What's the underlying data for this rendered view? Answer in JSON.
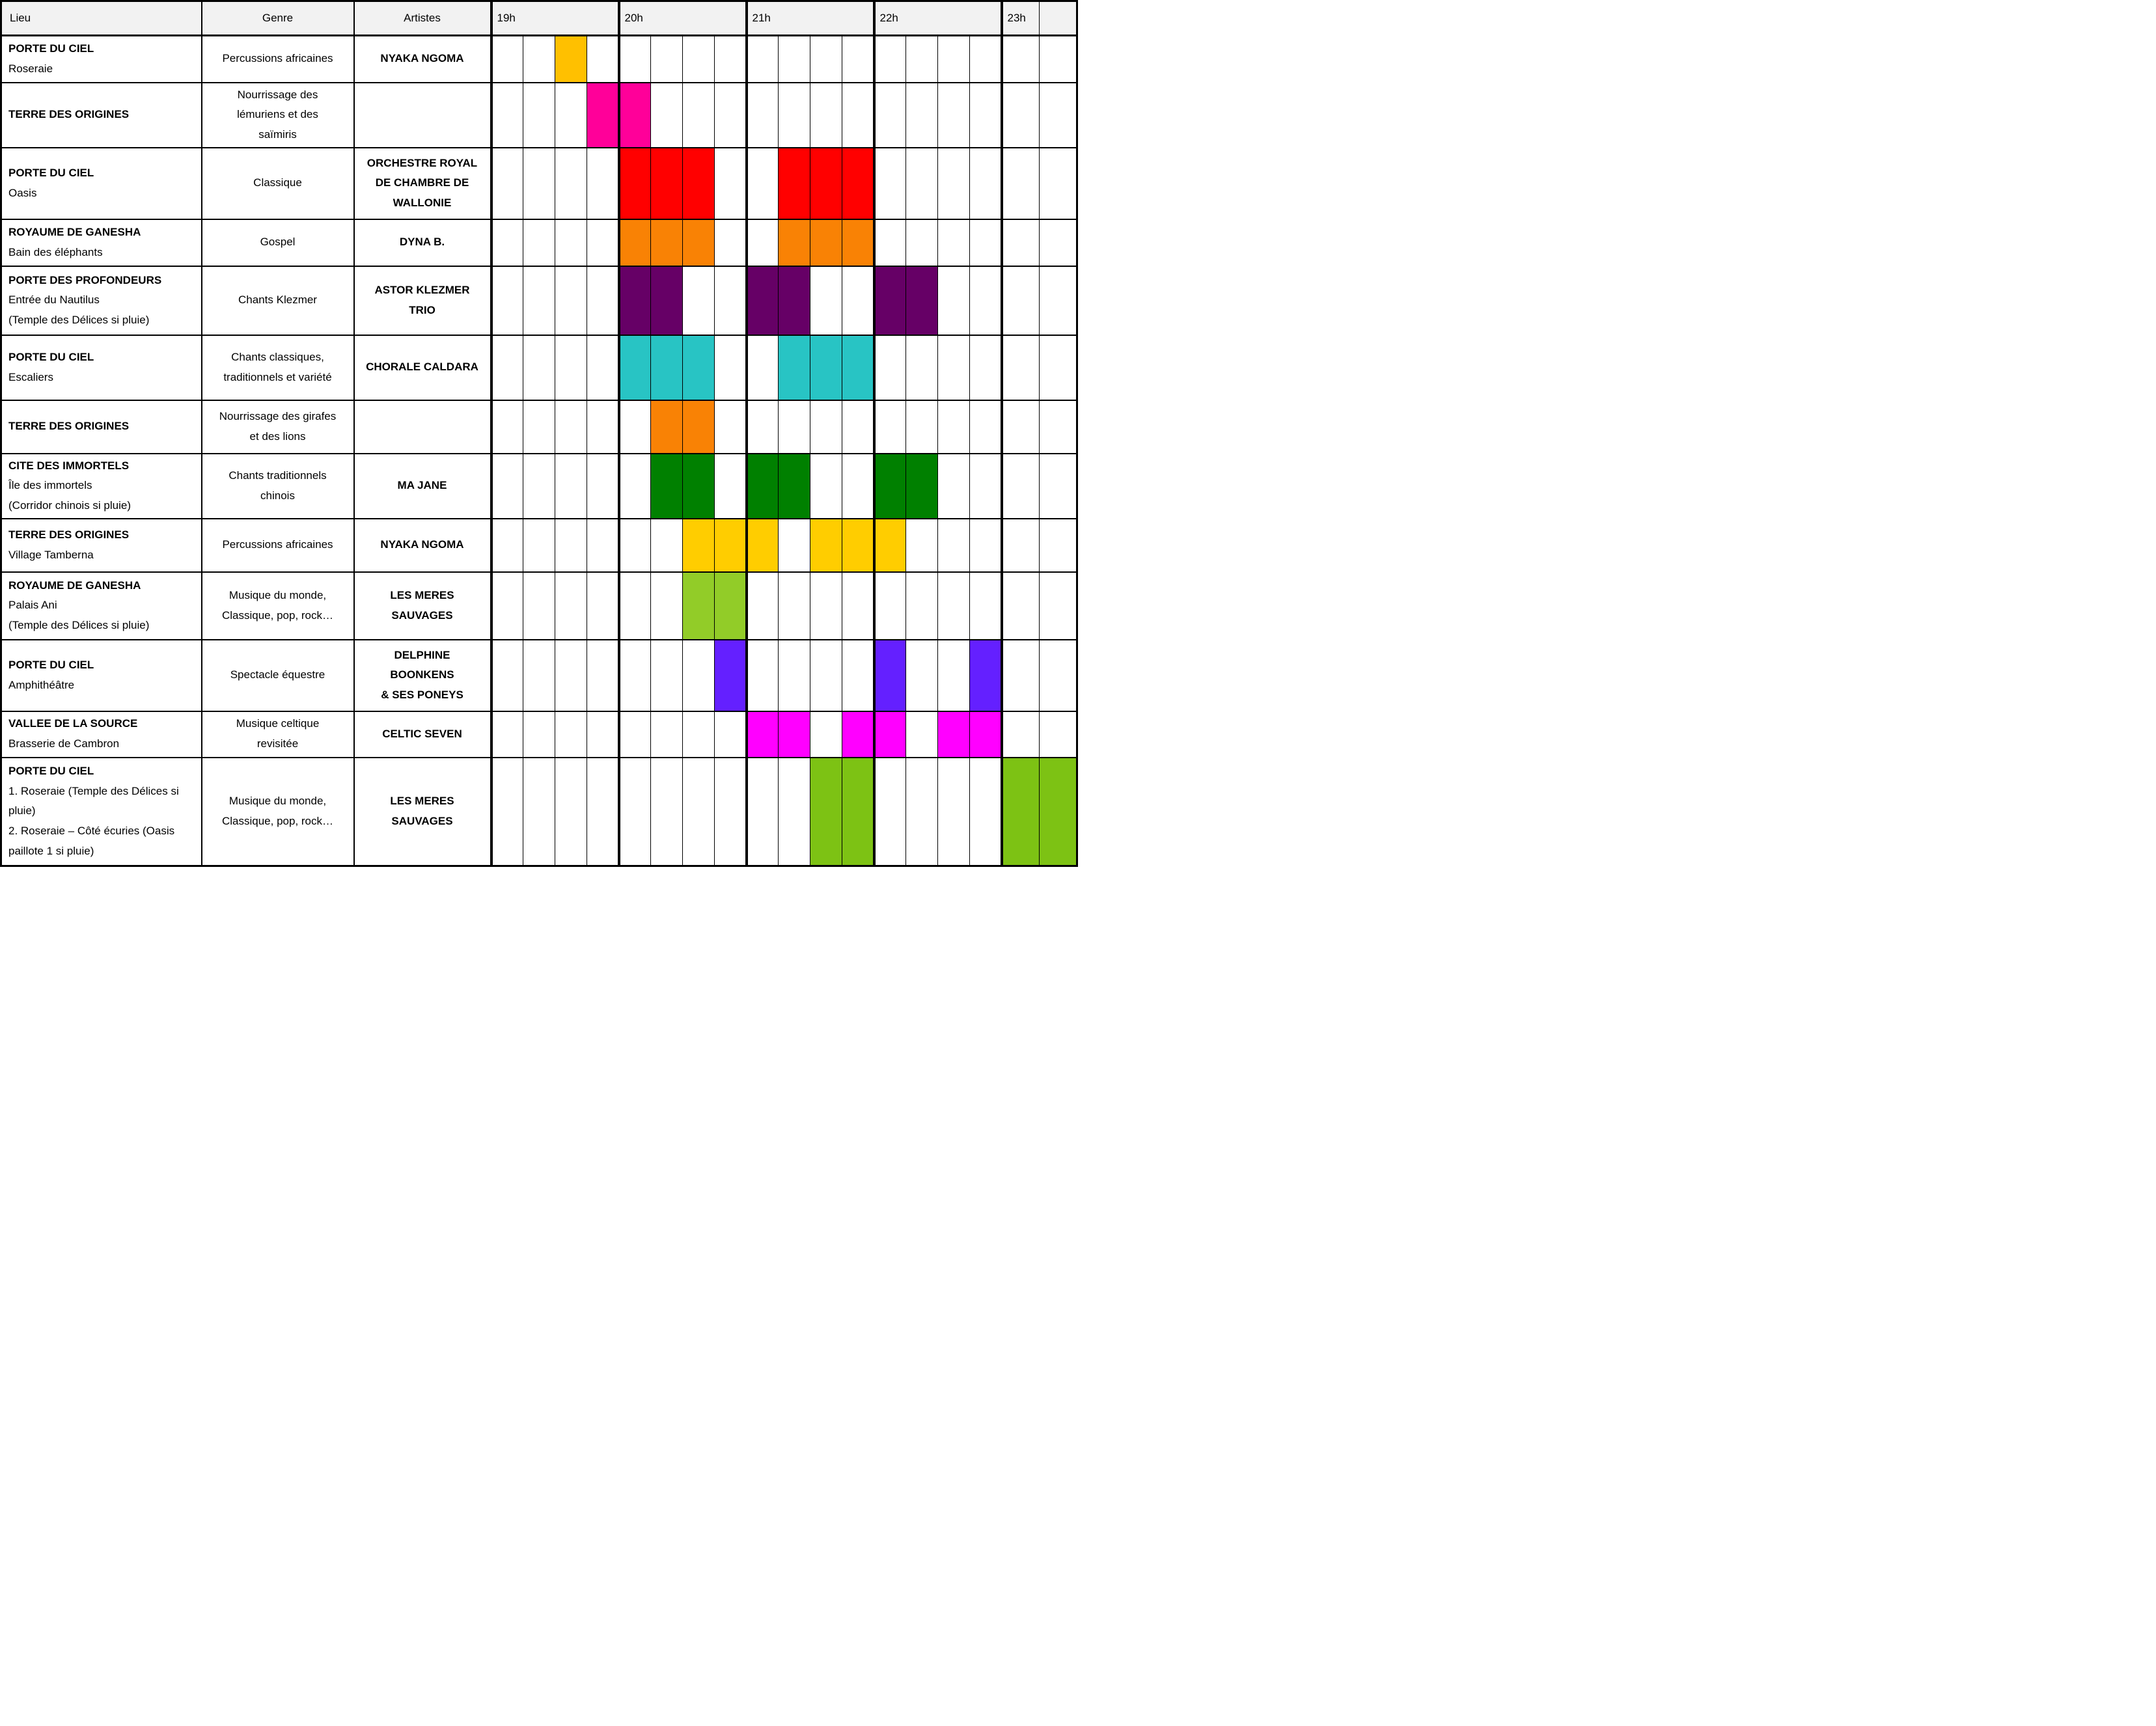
{
  "header": {
    "lieu": "Lieu",
    "genre": "Genre",
    "artistes": "Artistes",
    "hours": [
      {
        "label": "19h",
        "span": 4
      },
      {
        "label": "20h",
        "span": 4
      },
      {
        "label": "21h",
        "span": 4
      },
      {
        "label": "22h",
        "span": 4
      },
      {
        "label": "23h",
        "span": 1
      },
      {
        "label": "",
        "span": 1
      }
    ]
  },
  "grid": {
    "slots_per_hour": 4,
    "total_slots": 18
  },
  "colors": {
    "header_bg": "#F2F2F2",
    "gold": "#FFC000",
    "pink": "#FF0099",
    "red": "#FF0000",
    "orange": "#F98205",
    "purple": "#660066",
    "teal": "#28C4C4",
    "green": "#008000",
    "gold2": "#FFCD00",
    "lightgreen": "#92CC28",
    "violet": "#6420FF",
    "magenta": "#FF00FF",
    "green2": "#7DC214"
  },
  "rows": [
    {
      "lieu_title": "PORTE DU CIEL",
      "lieu_lines": [
        "Roseraie"
      ],
      "genre": "Percussions africaines",
      "artiste": "NYAKA NGOMA",
      "blocks": [
        {
          "start": 2,
          "span": 1,
          "color": "gold"
        }
      ]
    },
    {
      "lieu_title": "TERRE DES ORIGINES",
      "lieu_lines": [],
      "genre": "Nourrissage des lémuriens et des saïmiris",
      "artiste": "",
      "blocks": [
        {
          "start": 3,
          "span": 2,
          "color": "pink"
        }
      ]
    },
    {
      "lieu_title": "PORTE DU CIEL",
      "lieu_lines": [
        "Oasis"
      ],
      "genre": "Classique",
      "artiste": "ORCHESTRE ROYAL\nDE CHAMBRE DE\nWALLONIE",
      "blocks": [
        {
          "start": 4,
          "span": 3,
          "color": "red"
        },
        {
          "start": 9,
          "span": 3,
          "color": "red"
        }
      ]
    },
    {
      "lieu_title": "ROYAUME DE GANESHA",
      "lieu_lines": [
        "Bain des éléphants"
      ],
      "genre": "Gospel",
      "artiste": "DYNA B.",
      "blocks": [
        {
          "start": 4,
          "span": 3,
          "color": "orange"
        },
        {
          "start": 9,
          "span": 3,
          "color": "orange"
        }
      ]
    },
    {
      "lieu_title": "PORTE DES PROFONDEURS",
      "lieu_lines": [
        "Entrée du Nautilus",
        "(Temple des Délices si pluie)"
      ],
      "genre": "Chants Klezmer",
      "artiste": "ASTOR KLEZMER\nTRIO",
      "blocks": [
        {
          "start": 4,
          "span": 2,
          "color": "purple"
        },
        {
          "start": 8,
          "span": 2,
          "color": "purple"
        },
        {
          "start": 12,
          "span": 2,
          "color": "purple"
        }
      ]
    },
    {
      "lieu_title": "PORTE DU CIEL",
      "lieu_lines": [
        "Escaliers"
      ],
      "genre": "Chants classiques, traditionnels et variété",
      "artiste": "CHORALE CALDARA",
      "blocks": [
        {
          "start": 4,
          "span": 3,
          "color": "teal"
        },
        {
          "start": 9,
          "span": 3,
          "color": "teal"
        }
      ]
    },
    {
      "lieu_title": "TERRE DES ORIGINES",
      "lieu_lines": [],
      "genre": "Nourrissage des girafes et des lions",
      "artiste": "",
      "blocks": [
        {
          "start": 5,
          "span": 2,
          "color": "orange"
        }
      ]
    },
    {
      "lieu_title": "CITE DES IMMORTELS",
      "lieu_lines": [
        "Île des immortels",
        "(Corridor chinois si pluie)"
      ],
      "genre": "Chants traditionnels chinois",
      "artiste": "MA JANE",
      "blocks": [
        {
          "start": 5,
          "span": 2,
          "color": "green"
        },
        {
          "start": 8,
          "span": 2,
          "color": "green"
        },
        {
          "start": 12,
          "span": 2,
          "color": "green"
        }
      ]
    },
    {
      "lieu_title": "TERRE DES ORIGINES",
      "lieu_lines": [
        "Village Tamberna"
      ],
      "genre": "Percussions africaines",
      "artiste": "NYAKA NGOMA",
      "blocks": [
        {
          "start": 6,
          "span": 3,
          "color": "gold2"
        },
        {
          "start": 10,
          "span": 3,
          "color": "gold2"
        }
      ]
    },
    {
      "lieu_title": "ROYAUME DE GANESHA",
      "lieu_lines": [
        "Palais Ani",
        "(Temple des Délices si pluie)"
      ],
      "genre": "Musique du monde, Classique, pop, rock…",
      "artiste": "LES MERES\nSAUVAGES",
      "blocks": [
        {
          "start": 6,
          "span": 2,
          "color": "lightgreen"
        }
      ]
    },
    {
      "lieu_title": "PORTE DU CIEL",
      "lieu_lines": [
        "Amphithéâtre"
      ],
      "genre": "Spectacle équestre",
      "artiste": "DELPHINE\nBOONKENS\n& SES PONEYS",
      "blocks": [
        {
          "start": 7,
          "span": 1,
          "color": "violet"
        },
        {
          "start": 12,
          "span": 1,
          "color": "violet"
        },
        {
          "start": 15,
          "span": 1,
          "color": "violet"
        }
      ]
    },
    {
      "lieu_title": "VALLEE DE LA SOURCE",
      "lieu_lines": [
        "Brasserie de Cambron"
      ],
      "genre": "Musique celtique revisitée",
      "artiste": "CELTIC SEVEN",
      "blocks": [
        {
          "start": 8,
          "span": 2,
          "color": "magenta"
        },
        {
          "start": 11,
          "span": 2,
          "color": "magenta"
        },
        {
          "start": 14,
          "span": 2,
          "color": "magenta"
        }
      ]
    },
    {
      "lieu_title": "PORTE DU CIEL",
      "lieu_lines": [
        "1. Roseraie (Temple des Délices si pluie)",
        "2. Roseraie – Côté écuries (Oasis paillote 1 si pluie)"
      ],
      "genre": "Musique du monde, Classique, pop, rock…",
      "artiste": "LES MERES\nSAUVAGES",
      "blocks": [
        {
          "start": 10,
          "span": 2,
          "color": "green2"
        },
        {
          "start": 16,
          "span": 2,
          "color": "green2"
        }
      ]
    }
  ]
}
